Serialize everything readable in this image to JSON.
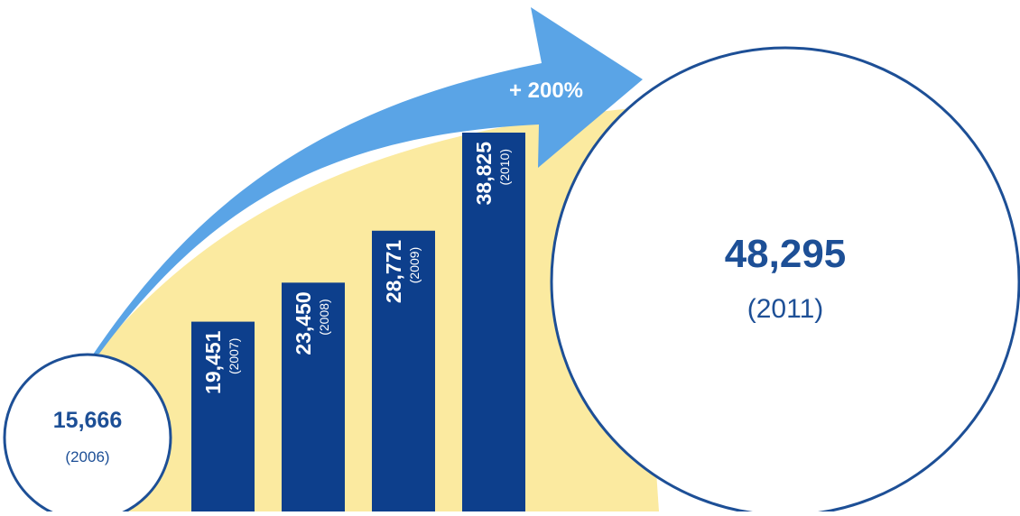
{
  "colors": {
    "bar": "#0d3f8c",
    "arrow": "#5aa4e6",
    "area": "#fbeaa0",
    "circle_stroke": "#1d4f96",
    "circle_text": "#1d4f96",
    "label_light": "#ffffff"
  },
  "growth_label": "+ 200%",
  "chart_data": {
    "type": "bar",
    "title": "",
    "xlabel": "",
    "ylabel": "",
    "categories": [
      "(2006)",
      "(2007)",
      "(2008)",
      "(2009)",
      "(2010)",
      "(2011)"
    ],
    "values": [
      15666,
      19451,
      23450,
      28771,
      38825,
      48295
    ],
    "value_labels": [
      "15,666",
      "19,451",
      "23,450",
      "28,771",
      "38,825",
      "48,295"
    ],
    "start_marker": {
      "value_label": "15,666",
      "year_label": "(2006)"
    },
    "end_marker": {
      "value_label": "48,295",
      "year_label": "(2011)"
    },
    "bars": [
      {
        "value_label": "19,451",
        "year_label": "(2007)",
        "value": 19451
      },
      {
        "value_label": "23,450",
        "year_label": "(2008)",
        "value": 23450
      },
      {
        "value_label": "28,771",
        "year_label": "(2009)",
        "value": 28771
      },
      {
        "value_label": "38,825",
        "year_label": "(2010)",
        "value": 38825
      }
    ],
    "grid": false,
    "legend": "none"
  }
}
